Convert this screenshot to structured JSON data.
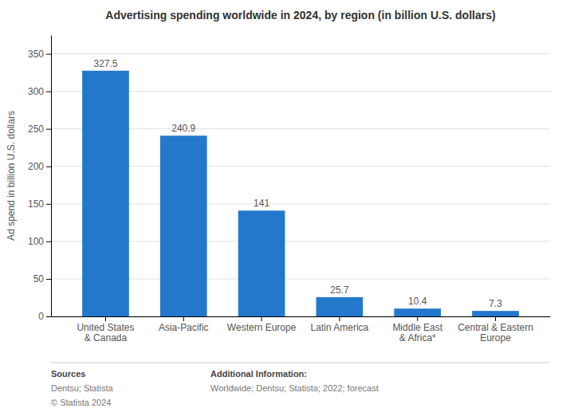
{
  "chart_data": {
    "type": "bar",
    "title": "Advertising spending worldwide in 2024, by region (in billion U.S. dollars)",
    "categories": [
      "United States\n& Canada",
      "Asia-Pacific",
      "Western Europe",
      "Latin America",
      "Middle East\n& Africa*",
      "Central & Eastern\nEurope"
    ],
    "values": [
      327.5,
      240.9,
      141,
      25.7,
      10.4,
      7.3
    ],
    "color": "#2478cc",
    "ylabel": "Ad spend in billion U.S. dollars",
    "ylim": [
      0,
      375
    ],
    "yticks": [
      0,
      50,
      100,
      150,
      200,
      250,
      300,
      350
    ],
    "grid": true,
    "data_labels": true,
    "annotations": [
      [
        "Sources",
        "Dentsu; Statista",
        "© Statista 2024"
      ],
      [
        "Additional Information:",
        "Worldwide; Dentsu; Statista; 2022; forecast"
      ]
    ]
  }
}
